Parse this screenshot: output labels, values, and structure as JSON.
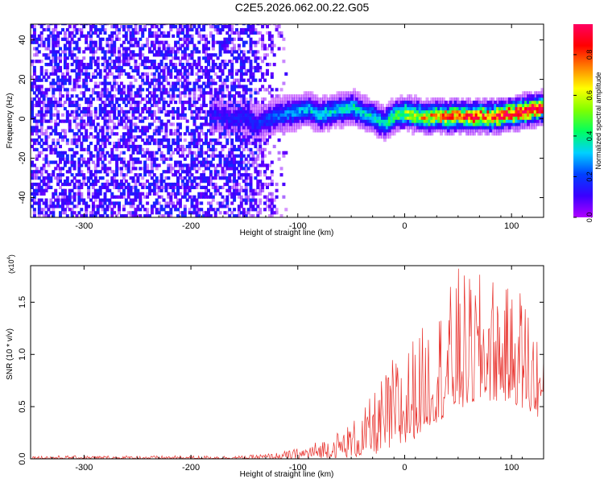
{
  "title": "C2E5.2026.062.00.22.G05",
  "chart_data": [
    {
      "type": "heatmap",
      "xlabel": "Height of straight line (km)",
      "ylabel": "Frequency (Hz)",
      "xlim": [
        -350,
        130
      ],
      "ylim": [
        -50,
        48
      ],
      "xticks": [
        -300,
        -200,
        -100,
        0,
        100
      ],
      "yticks": [
        -40,
        -20,
        0,
        20,
        40
      ],
      "xtick_labels": [
        "-300",
        "-200",
        "-100",
        "0",
        "100"
      ],
      "ytick_labels": [
        "-40",
        "-20",
        "0",
        "20",
        "40"
      ],
      "colorbar": {
        "label": "Normalized spectral amplitude",
        "range": [
          0,
          0.95
        ],
        "ticks": [
          0,
          0.2,
          0.4,
          0.6,
          0.8
        ],
        "tick_labels": [
          "0.0",
          "0.2",
          "0.4",
          "0.6",
          "0.8"
        ],
        "colormap": [
          "#b000ff",
          "#3a00ff",
          "#0040ff",
          "#00d0ff",
          "#00ff60",
          "#80ff00",
          "#ffff00",
          "#ff8000",
          "#ff0000",
          "#ff0060"
        ]
      },
      "noise_region": {
        "x_from": -350,
        "x_to": -140,
        "fade_to": -110,
        "amplitude": 0.1
      },
      "ridge_center_hz": [
        [
          -180,
          2
        ],
        [
          -170,
          0
        ],
        [
          -160,
          -1
        ],
        [
          -150,
          0
        ],
        [
          -140,
          -4
        ],
        [
          -130,
          -1
        ],
        [
          -120,
          1
        ],
        [
          -110,
          2
        ],
        [
          -100,
          3
        ],
        [
          -90,
          4
        ],
        [
          -80,
          1
        ],
        [
          -70,
          3
        ],
        [
          -60,
          4
        ],
        [
          -50,
          5
        ],
        [
          -40,
          2
        ],
        [
          -30,
          0
        ],
        [
          -20,
          -3
        ],
        [
          -10,
          1
        ],
        [
          0,
          2
        ],
        [
          10,
          1
        ],
        [
          20,
          0
        ],
        [
          30,
          1
        ],
        [
          40,
          0
        ],
        [
          50,
          1
        ],
        [
          60,
          0
        ],
        [
          70,
          1
        ],
        [
          80,
          0
        ],
        [
          90,
          1
        ],
        [
          100,
          2
        ],
        [
          110,
          3
        ],
        [
          120,
          4
        ],
        [
          130,
          5
        ]
      ],
      "ridge_peak_amplitude": [
        [
          -180,
          0.12
        ],
        [
          -150,
          0.15
        ],
        [
          -120,
          0.25
        ],
        [
          -100,
          0.3
        ],
        [
          -80,
          0.35
        ],
        [
          -60,
          0.35
        ],
        [
          -40,
          0.38
        ],
        [
          -20,
          0.4
        ],
        [
          0,
          0.55
        ],
        [
          20,
          0.7
        ],
        [
          40,
          0.8
        ],
        [
          60,
          0.85
        ],
        [
          80,
          0.9
        ],
        [
          100,
          0.9
        ],
        [
          130,
          0.95
        ]
      ]
    },
    {
      "type": "line",
      "xlabel": "Height of straight line (km)",
      "ylabel": "SNR (10 * v/v)",
      "multiplier_label": "(x10",
      "multiplier_exponent": "4",
      "multiplier_close": ")",
      "xlim": [
        -350,
        130
      ],
      "ylim": [
        0,
        1.85
      ],
      "xticks": [
        -300,
        -200,
        -100,
        0,
        100
      ],
      "yticks": [
        0.0,
        0.5,
        1.0,
        1.5
      ],
      "xtick_labels": [
        "-300",
        "-200",
        "-100",
        "0",
        "100"
      ],
      "ytick_labels": [
        "0.0",
        "0.5",
        "1.0",
        "1.5"
      ],
      "color": "#e8302b",
      "envelope_max": [
        [
          -350,
          0.03
        ],
        [
          -200,
          0.03
        ],
        [
          -150,
          0.03
        ],
        [
          -120,
          0.06
        ],
        [
          -100,
          0.1
        ],
        [
          -80,
          0.18
        ],
        [
          -60,
          0.28
        ],
        [
          -40,
          0.45
        ],
        [
          -20,
          0.8
        ],
        [
          -10,
          1.0
        ],
        [
          0,
          1.1
        ],
        [
          20,
          1.3
        ],
        [
          40,
          1.6
        ],
        [
          50,
          1.85
        ],
        [
          60,
          1.75
        ],
        [
          80,
          1.8
        ],
        [
          100,
          1.6
        ],
        [
          110,
          1.7
        ],
        [
          120,
          1.4
        ],
        [
          130,
          1.0
        ]
      ],
      "envelope_min": [
        [
          -350,
          0.0
        ],
        [
          -100,
          0.0
        ],
        [
          -40,
          0.02
        ],
        [
          0,
          0.1
        ],
        [
          20,
          0.3
        ],
        [
          40,
          0.4
        ],
        [
          60,
          0.5
        ],
        [
          80,
          0.55
        ],
        [
          100,
          0.55
        ],
        [
          120,
          0.4
        ],
        [
          130,
          0.4
        ]
      ],
      "samples": 700,
      "series_name": "SNR"
    }
  ]
}
